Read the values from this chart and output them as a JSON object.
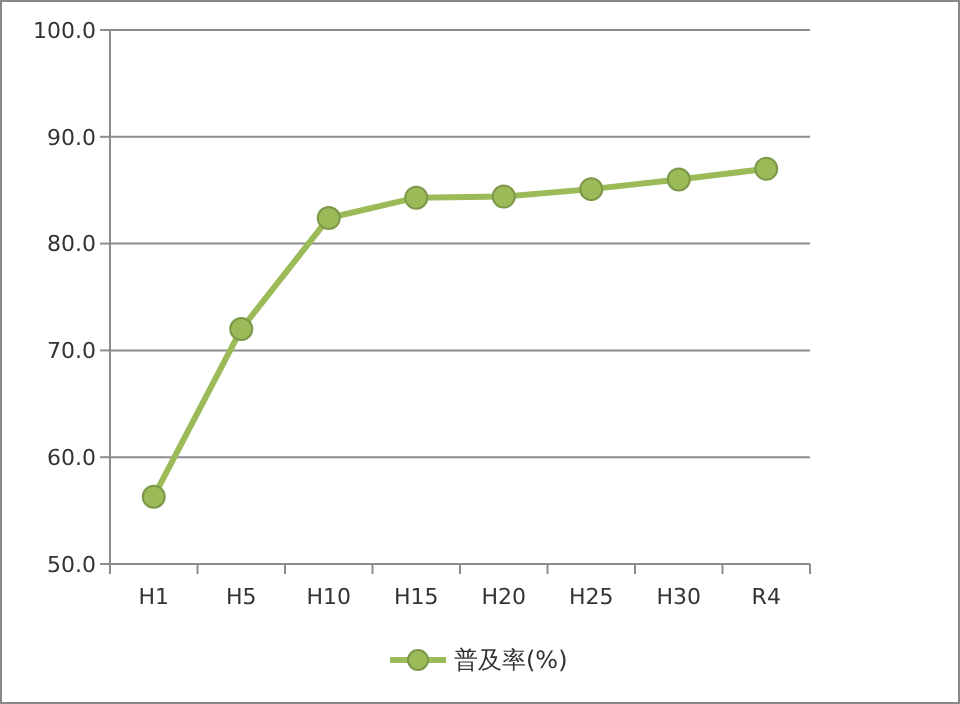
{
  "chart_data": {
    "type": "line",
    "categories": [
      "H1",
      "H5",
      "H10",
      "H15",
      "H20",
      "H25",
      "H30",
      "R4"
    ],
    "series": [
      {
        "name": "普及率(%)",
        "color": "#9bbb59",
        "values": [
          56.3,
          72.0,
          82.4,
          84.3,
          84.4,
          85.1,
          86.0,
          87.0
        ]
      }
    ],
    "ylim": [
      50,
      100
    ],
    "yticks": [
      {
        "value": 50,
        "label": "50.0"
      },
      {
        "value": 60,
        "label": "60.0"
      },
      {
        "value": 70,
        "label": "70.0"
      },
      {
        "value": 80,
        "label": "80.0"
      },
      {
        "value": 90,
        "label": "90.0"
      },
      {
        "value": 100,
        "label": "100.0"
      }
    ],
    "grid": "y",
    "legend": "bottom",
    "marker": "circle",
    "line_style": "solid"
  }
}
